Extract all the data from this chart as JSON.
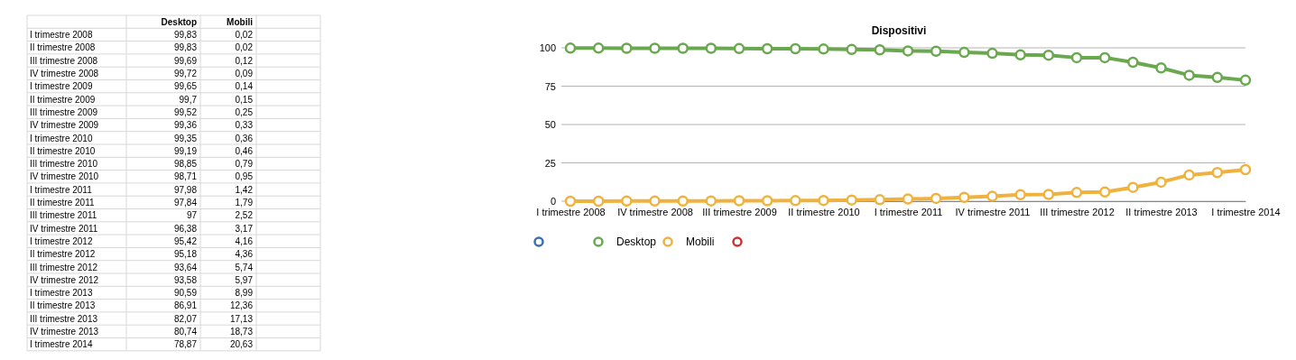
{
  "chart_data": [
    {
      "type": "other",
      "categories": [
        "I trimestre 2008",
        "II trimestre 2008",
        "III trimestre 2008",
        "IV trimestre 2008",
        "I trimestre 2009",
        "II trimestre 2009",
        "III trimestre 2009",
        "IV trimestre 2009",
        "I trimestre 2010",
        "II trimestre 2010",
        "III trimestre 2010",
        "IV trimestre 2010",
        "I trimestre 2011",
        "II trimestre 2011",
        "III trimestre 2011",
        "IV trimestre 2011",
        "I trimestre 2012",
        "II trimestre 2012",
        "III trimestre 2012",
        "IV trimestre 2012",
        "I trimestre 2013",
        "II trimestre 2013",
        "III trimestre 2013",
        "IV trimestre 2013",
        "I trimestre 2014"
      ],
      "series": [
        {
          "name": "Desktop",
          "values": [
            99.83,
            99.83,
            99.69,
            99.72,
            99.65,
            99.7,
            99.52,
            99.36,
            99.35,
            99.19,
            98.85,
            98.71,
            97.98,
            97.84,
            97,
            96.38,
            95.42,
            95.18,
            93.64,
            93.58,
            90.59,
            86.91,
            82.07,
            80.74,
            78.87
          ],
          "value_labels": [
            "99,83",
            "99,83",
            "99,69",
            "99,72",
            "99,65",
            "99,7",
            "99,52",
            "99,36",
            "99,35",
            "99,19",
            "98,85",
            "98,71",
            "97,98",
            "97,84",
            "97",
            "96,38",
            "95,42",
            "95,18",
            "93,64",
            "93,58",
            "90,59",
            "86,91",
            "82,07",
            "80,74",
            "78,87"
          ]
        },
        {
          "name": "Mobili",
          "values": [
            0.02,
            0.02,
            0.12,
            0.09,
            0.14,
            0.15,
            0.25,
            0.33,
            0.36,
            0.46,
            0.79,
            0.95,
            1.42,
            1.79,
            2.52,
            3.17,
            4.16,
            4.36,
            5.74,
            5.97,
            8.99,
            12.36,
            17.13,
            18.73,
            20.63
          ],
          "value_labels": [
            "0,02",
            "0,02",
            "0,12",
            "0,09",
            "0,14",
            "0,15",
            "0,25",
            "0,33",
            "0,36",
            "0,46",
            "0,79",
            "0,95",
            "1,42",
            "1,79",
            "2,52",
            "3,17",
            "4,16",
            "4,36",
            "5,74",
            "5,97",
            "8,99",
            "12,36",
            "17,13",
            "18,73",
            "20,63"
          ]
        }
      ]
    },
    {
      "type": "line",
      "title": "Dispositivi",
      "categories": [
        "I trimestre 2008",
        null,
        null,
        "IV trimestre 2008",
        null,
        null,
        "III trimestre 2009",
        null,
        null,
        "II trimestre 2010",
        null,
        null,
        "I trimestre 2011",
        null,
        null,
        "IV trimestre 2011",
        null,
        null,
        "III trimestre 2012",
        null,
        null,
        "II trimestre 2013",
        null,
        null,
        "I trimestre 2014"
      ],
      "series": [
        {
          "color": "#3a6fb0",
          "values": [
            null,
            null,
            null,
            null,
            null,
            null,
            null,
            null,
            null,
            null,
            null,
            null,
            null,
            null,
            null,
            null,
            null,
            null,
            null,
            null,
            null,
            null,
            null,
            null,
            null
          ]
        },
        {
          "name": "Desktop",
          "color": "#6aa84f",
          "values": [
            99.8,
            99.8,
            99.7,
            99.7,
            99.7,
            99.7,
            99.5,
            99.4,
            99.4,
            99.2,
            98.9,
            98.7,
            98,
            97.8,
            97,
            96.4,
            95.4,
            95.2,
            93.6,
            93.6,
            90.6,
            86.9,
            82.1,
            80.7,
            78.9
          ]
        },
        {
          "name": "Mobili",
          "color": "#f0b23e",
          "values": [
            0,
            0,
            0.1,
            0.1,
            0.1,
            0.2,
            0.3,
            0.3,
            0.4,
            0.5,
            0.8,
            1,
            1.4,
            1.8,
            2.5,
            3.2,
            4.2,
            4.4,
            5.7,
            6,
            9,
            12.4,
            17.1,
            18.7,
            20.6
          ]
        },
        {
          "color": "#cc3333",
          "values": [
            null,
            null,
            null,
            null,
            null,
            null,
            null,
            null,
            null,
            null,
            null,
            null,
            null,
            null,
            null,
            null,
            null,
            null,
            null,
            null,
            null,
            null,
            null,
            null,
            null
          ]
        }
      ],
      "ylim": [
        0,
        100
      ],
      "yticks": [
        0,
        25,
        50,
        75,
        100
      ],
      "grid": "y",
      "legend": "bottom",
      "marker": "circle",
      "line_style": "solid"
    }
  ]
}
